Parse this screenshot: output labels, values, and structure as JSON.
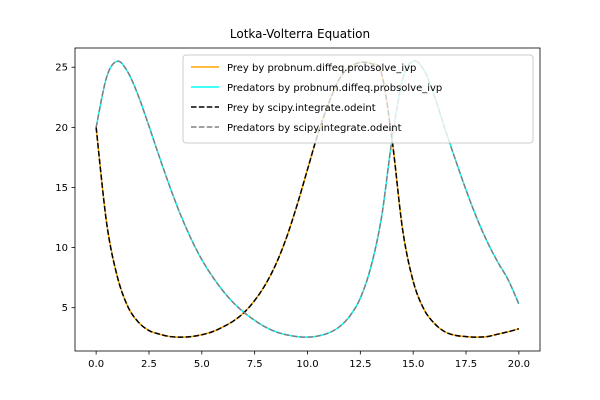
{
  "chart_data": {
    "type": "line",
    "title": "Lotka-Volterra Equation",
    "xlabel": "",
    "ylabel": "",
    "xlim": [
      -1.0,
      21.0
    ],
    "ylim": [
      1.4,
      26.6
    ],
    "xticks": [
      0.0,
      2.5,
      5.0,
      7.5,
      10.0,
      12.5,
      15.0,
      17.5,
      20.0
    ],
    "xtick_labels": [
      "0.0",
      "2.5",
      "5.0",
      "7.5",
      "10.0",
      "12.5",
      "15.0",
      "17.5",
      "20.0"
    ],
    "yticks": [
      5,
      10,
      15,
      20,
      25
    ],
    "ytick_labels": [
      "5",
      "10",
      "15",
      "20",
      "25"
    ],
    "grid": false,
    "legend_position": "top-right",
    "series": [
      {
        "name": "Prey by probnum.diffeq.probsolve_ivp",
        "color": "#ffa500",
        "dash": "solid",
        "x": [
          0,
          0.5,
          1.0,
          1.5,
          2.0,
          2.5,
          3.0,
          3.5,
          4.0,
          4.5,
          5.0,
          5.5,
          6.0,
          6.5,
          7.0,
          7.5,
          8.0,
          8.5,
          9.0,
          9.5,
          10.0,
          10.5,
          11.0,
          11.5,
          12.0,
          12.5,
          13.0,
          13.5,
          14.0,
          14.5,
          15.0,
          15.5,
          16.0,
          16.5,
          17.0,
          17.5,
          18.0,
          18.5,
          19.0,
          19.5,
          20.0
        ],
        "y": [
          20.0,
          12.0,
          7.6,
          5.1,
          3.8,
          3.1,
          2.8,
          2.6,
          2.55,
          2.6,
          2.75,
          3.0,
          3.4,
          3.9,
          4.6,
          5.6,
          6.9,
          8.6,
          10.8,
          13.5,
          16.5,
          19.5,
          22.0,
          24.0,
          25.0,
          25.4,
          25.3,
          24.5,
          19.0,
          11.5,
          7.2,
          4.9,
          3.7,
          3.0,
          2.7,
          2.6,
          2.55,
          2.6,
          2.8,
          3.0,
          3.25
        ]
      },
      {
        "name": "Predators by probnum.diffeq.probsolve_ivp",
        "color": "#00ffff",
        "dash": "solid",
        "x": [
          0,
          0.5,
          1.0,
          1.5,
          2.0,
          2.5,
          3.0,
          3.5,
          4.0,
          4.5,
          5.0,
          5.5,
          6.0,
          6.5,
          7.0,
          7.5,
          8.0,
          8.5,
          9.0,
          9.5,
          10.0,
          10.5,
          11.0,
          11.5,
          12.0,
          12.5,
          13.0,
          13.5,
          14.0,
          14.5,
          15.0,
          15.5,
          16.0,
          16.5,
          17.0,
          17.5,
          18.0,
          18.5,
          19.0,
          19.5,
          20.0
        ],
        "y": [
          20.0,
          24.2,
          25.5,
          24.6,
          22.6,
          20.1,
          17.5,
          15.0,
          12.7,
          10.7,
          9.0,
          7.6,
          6.4,
          5.4,
          4.6,
          3.95,
          3.4,
          3.0,
          2.75,
          2.6,
          2.55,
          2.65,
          2.9,
          3.4,
          4.3,
          5.8,
          8.4,
          12.5,
          19.0,
          24.0,
          25.5,
          24.8,
          22.6,
          19.9,
          17.3,
          14.8,
          12.5,
          10.5,
          8.8,
          7.3,
          5.3
        ]
      },
      {
        "name": "Prey by scipy.integrate.odeint",
        "color": "#000000",
        "dash": "dashed",
        "x": [
          0,
          0.5,
          1.0,
          1.5,
          2.0,
          2.5,
          3.0,
          3.5,
          4.0,
          4.5,
          5.0,
          5.5,
          6.0,
          6.5,
          7.0,
          7.5,
          8.0,
          8.5,
          9.0,
          9.5,
          10.0,
          10.5,
          11.0,
          11.5,
          12.0,
          12.5,
          13.0,
          13.5,
          14.0,
          14.5,
          15.0,
          15.5,
          16.0,
          16.5,
          17.0,
          17.5,
          18.0,
          18.5,
          19.0,
          19.5,
          20.0
        ],
        "y": [
          20.0,
          12.0,
          7.6,
          5.1,
          3.8,
          3.1,
          2.8,
          2.6,
          2.55,
          2.6,
          2.75,
          3.0,
          3.4,
          3.9,
          4.6,
          5.6,
          6.9,
          8.6,
          10.8,
          13.5,
          16.5,
          19.5,
          22.0,
          24.0,
          25.0,
          25.4,
          25.3,
          24.5,
          19.0,
          11.5,
          7.2,
          4.9,
          3.7,
          3.0,
          2.7,
          2.6,
          2.55,
          2.6,
          2.8,
          3.0,
          3.25
        ]
      },
      {
        "name": "Predators by scipy.integrate.odeint",
        "color": "#808080",
        "dash": "dashed",
        "x": [
          0,
          0.5,
          1.0,
          1.5,
          2.0,
          2.5,
          3.0,
          3.5,
          4.0,
          4.5,
          5.0,
          5.5,
          6.0,
          6.5,
          7.0,
          7.5,
          8.0,
          8.5,
          9.0,
          9.5,
          10.0,
          10.5,
          11.0,
          11.5,
          12.0,
          12.5,
          13.0,
          13.5,
          14.0,
          14.5,
          15.0,
          15.5,
          16.0,
          16.5,
          17.0,
          17.5,
          18.0,
          18.5,
          19.0,
          19.5,
          20.0
        ],
        "y": [
          20.0,
          24.2,
          25.5,
          24.6,
          22.6,
          20.1,
          17.5,
          15.0,
          12.7,
          10.7,
          9.0,
          7.6,
          6.4,
          5.4,
          4.6,
          3.95,
          3.4,
          3.0,
          2.75,
          2.6,
          2.55,
          2.65,
          2.9,
          3.4,
          4.3,
          5.8,
          8.4,
          12.5,
          19.0,
          24.0,
          25.5,
          24.8,
          22.6,
          19.9,
          17.3,
          14.8,
          12.5,
          10.5,
          8.8,
          7.3,
          5.3
        ]
      }
    ]
  }
}
